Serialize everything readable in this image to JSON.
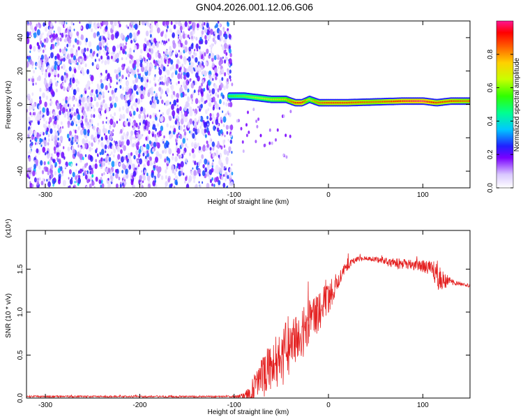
{
  "page": {
    "title": "GN04.2026.001.12.06.G06"
  },
  "colors": {
    "background": "#ffffff",
    "axis": "#000000",
    "snr_line": "#e41f1f"
  },
  "chart_data": [
    {
      "type": "heatmap",
      "title": "GN04.2026.001.12.06.G06",
      "xlabel": "Height of straight line (km)",
      "ylabel": "Frequency (Hz)",
      "xlim": [
        -320,
        150
      ],
      "ylim": [
        -50,
        50
      ],
      "xticks": [
        -300,
        -200,
        -100,
        0,
        100
      ],
      "yticks": [
        -40,
        -20,
        0,
        20,
        40
      ],
      "grid": false,
      "noise_region": {
        "x_from": -320,
        "x_to": -102,
        "y_from": -50,
        "y_to": 50,
        "level": 0.2
      },
      "signal_ridge": [
        {
          "x": -105,
          "y": 5,
          "level": 0.55
        },
        {
          "x": -90,
          "y": 5,
          "level": 0.6
        },
        {
          "x": -75,
          "y": 4,
          "level": 0.65
        },
        {
          "x": -60,
          "y": 3,
          "level": 0.7
        },
        {
          "x": -45,
          "y": 3,
          "level": 0.75
        },
        {
          "x": -35,
          "y": 1,
          "level": 0.9
        },
        {
          "x": -28,
          "y": 1,
          "level": 0.95
        },
        {
          "x": -20,
          "y": 3,
          "level": 0.7
        },
        {
          "x": -10,
          "y": 1,
          "level": 0.85
        },
        {
          "x": 0,
          "y": 1,
          "level": 0.9
        },
        {
          "x": 20,
          "y": 1,
          "level": 0.9
        },
        {
          "x": 50,
          "y": 1.5,
          "level": 0.85
        },
        {
          "x": 80,
          "y": 2,
          "level": 0.95
        },
        {
          "x": 100,
          "y": 2,
          "level": 1.0
        },
        {
          "x": 115,
          "y": 1,
          "level": 0.9
        },
        {
          "x": 130,
          "y": 2,
          "level": 0.9
        },
        {
          "x": 150,
          "y": 2,
          "level": 0.85
        }
      ],
      "colorbar": {
        "label": "Normalized spectral amplitude",
        "range": [
          0,
          1
        ],
        "ticks": [
          "0.0",
          "0.2",
          "0.4",
          "0.6",
          "0.8"
        ],
        "tick_values": [
          0,
          0.2,
          0.4,
          0.6,
          0.8
        ]
      }
    },
    {
      "type": "line",
      "xlabel": "Height of straight line (km)",
      "ylabel": "SNR (10 * v/v)",
      "multiplier": "(x10⁴)",
      "xlim": [
        -320,
        150
      ],
      "ylim": [
        0,
        1.95
      ],
      "xticks": [
        -300,
        -200,
        -100,
        0,
        100
      ],
      "yticks": [
        0,
        0.5,
        1.0,
        1.5
      ],
      "ytick_labels": [
        "0.0",
        "0.5",
        "1.0",
        "1.5"
      ],
      "grid": false,
      "series": [
        {
          "color": "#e41f1f",
          "x": [
            -320,
            -300,
            -250,
            -200,
            -150,
            -100,
            -90,
            -85,
            -80,
            -75,
            -70,
            -65,
            -60,
            -55,
            -50,
            -45,
            -40,
            -35,
            -30,
            -25,
            -20,
            -15,
            -10,
            -5,
            0,
            5,
            10,
            15,
            20,
            25,
            30,
            40,
            50,
            60,
            70,
            80,
            90,
            100,
            110,
            115,
            120,
            130,
            140,
            150
          ],
          "y": [
            0.02,
            0.02,
            0.02,
            0.02,
            0.02,
            0.02,
            0.03,
            0.05,
            0.12,
            0.25,
            0.3,
            0.4,
            0.35,
            0.55,
            0.45,
            0.65,
            0.6,
            0.75,
            0.8,
            0.85,
            0.95,
            1.0,
            1.05,
            1.15,
            1.2,
            1.3,
            1.4,
            1.5,
            1.55,
            1.58,
            1.62,
            1.63,
            1.62,
            1.6,
            1.58,
            1.57,
            1.56,
            1.55,
            1.52,
            1.45,
            1.4,
            1.36,
            1.33,
            1.31
          ],
          "noise": [
            0.01,
            0.01,
            0.01,
            0.01,
            0.01,
            0.01,
            0.03,
            0.08,
            0.15,
            0.2,
            0.25,
            0.3,
            0.28,
            0.35,
            0.3,
            0.35,
            0.3,
            0.3,
            0.3,
            0.3,
            0.25,
            0.25,
            0.25,
            0.2,
            0.18,
            0.15,
            0.12,
            0.08,
            0.06,
            0.04,
            0.03,
            0.02,
            0.03,
            0.05,
            0.06,
            0.06,
            0.06,
            0.07,
            0.1,
            0.2,
            0.12,
            0.04,
            0.02,
            0.02
          ]
        }
      ]
    }
  ]
}
